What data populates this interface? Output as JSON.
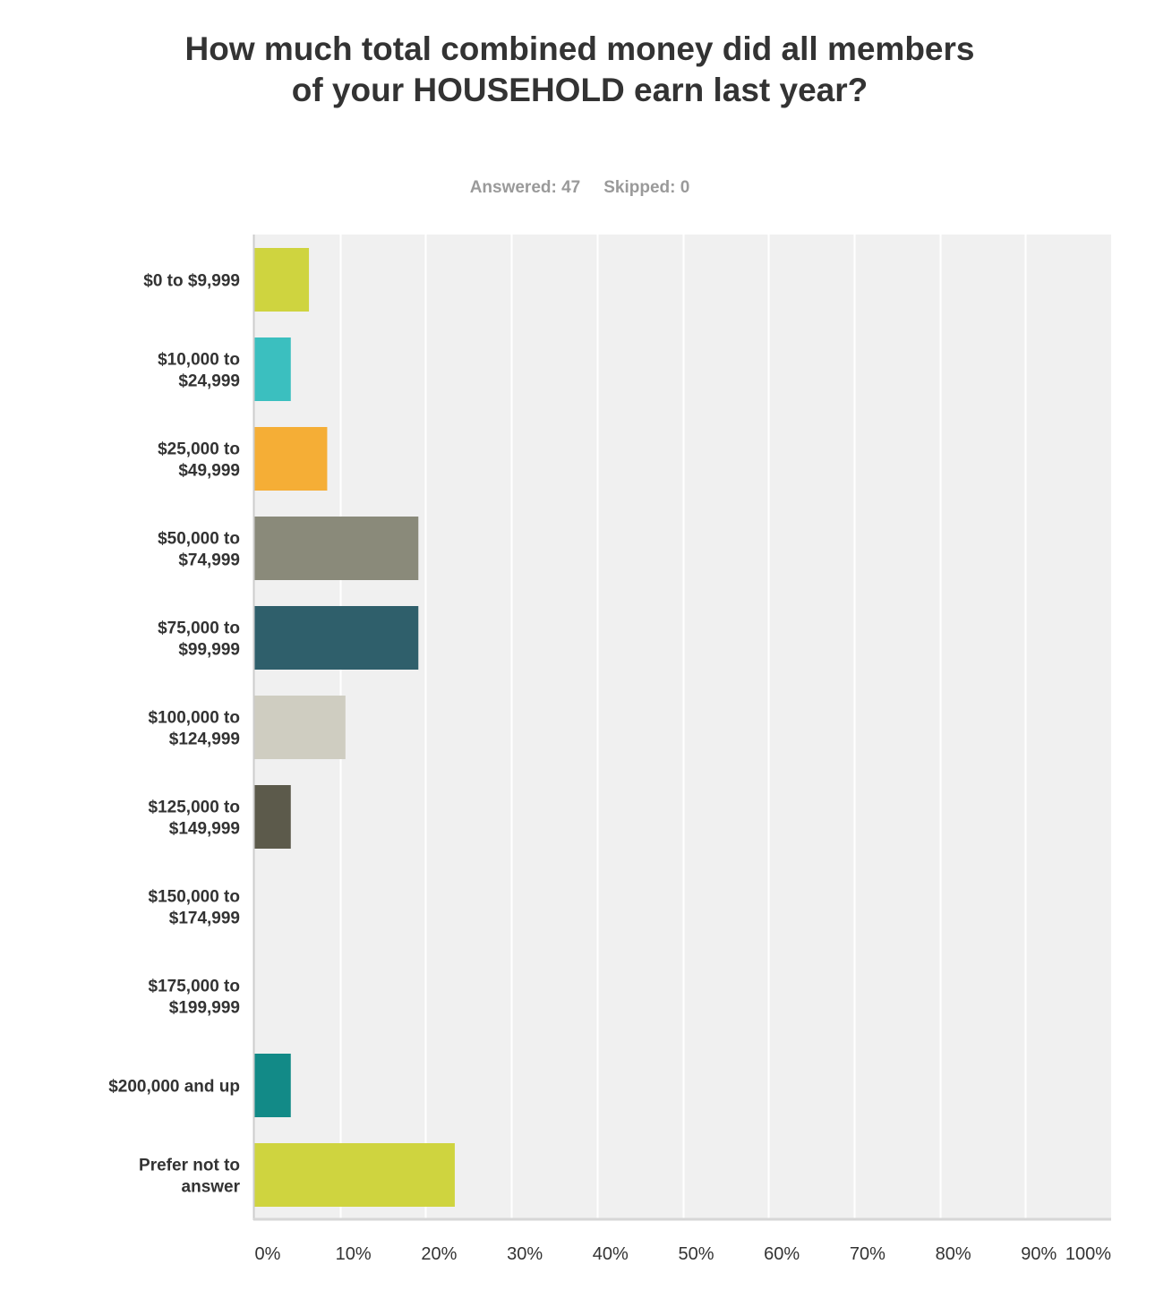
{
  "chart_data": {
    "type": "bar",
    "orientation": "horizontal",
    "title": "How much total combined money did all members of your HOUSEHOLD earn last year?",
    "summary": {
      "answered_label": "Answered: 47",
      "skipped_label": "Skipped: 0"
    },
    "categories": [
      [
        "$0 to $9,999"
      ],
      [
        "$10,000 to",
        "$24,999"
      ],
      [
        "$25,000 to",
        "$49,999"
      ],
      [
        "$50,000 to",
        "$74,999"
      ],
      [
        "$75,000 to",
        "$99,999"
      ],
      [
        "$100,000 to",
        "$124,999"
      ],
      [
        "$125,000 to",
        "$149,999"
      ],
      [
        "$150,000 to",
        "$174,999"
      ],
      [
        "$175,000 to",
        "$199,999"
      ],
      [
        "$200,000 and up"
      ],
      [
        "Prefer not to",
        "answer"
      ]
    ],
    "values": [
      6.38,
      4.26,
      8.51,
      19.15,
      19.15,
      10.64,
      4.26,
      0,
      0,
      4.26,
      23.4
    ],
    "colors": [
      "#cfd43f",
      "#3bbfbf",
      "#f5ae36",
      "#8a8a7a",
      "#2f5f6b",
      "#cfcdc1",
      "#5c5a4b",
      "#8a8a7a",
      "#2f5f6b",
      "#128a87",
      "#cfd43f"
    ],
    "xlim": [
      0,
      100
    ],
    "x_ticks": [
      "0%",
      "10%",
      "20%",
      "30%",
      "40%",
      "50%",
      "60%",
      "70%",
      "80%",
      "90%",
      "100%"
    ],
    "grid": true,
    "xlabel": "",
    "ylabel": ""
  }
}
